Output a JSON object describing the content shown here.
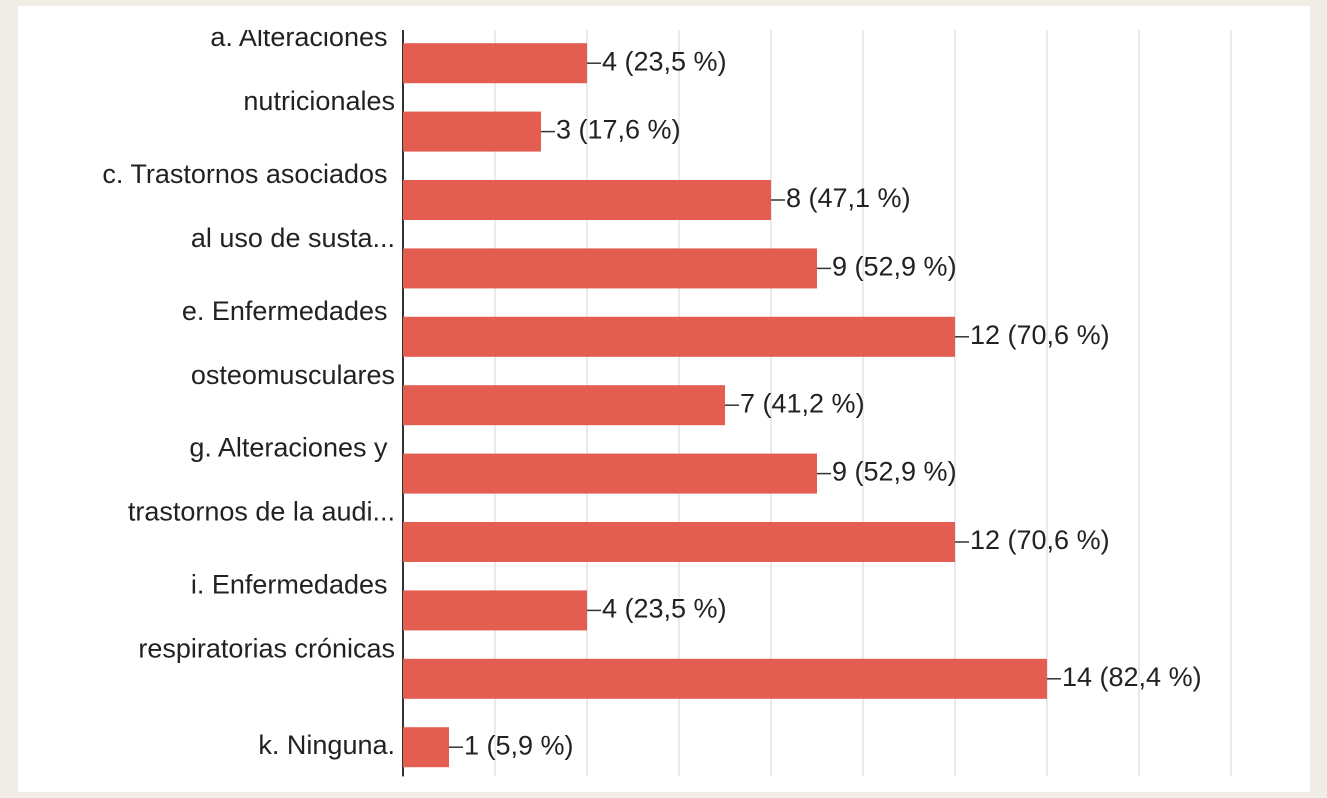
{
  "chart_data": {
    "type": "bar",
    "orientation": "horizontal",
    "categories": [
      "a. Alteraciones nutricionales",
      null,
      "c. Trastornos asociados al uso de susta...",
      null,
      "e. Enfermedades osteomusculares",
      null,
      "g. Alteraciones y trastornos de la audi...",
      null,
      "i. Enfermedades respiratorias crónicas",
      null,
      "k. Ninguna."
    ],
    "values": [
      4,
      3,
      8,
      9,
      12,
      7,
      9,
      12,
      4,
      14,
      1
    ],
    "value_labels": [
      "4 (23,5 %)",
      "3 (17,6 %)",
      "8 (47,1 %)",
      "9 (52,9 %)",
      "12 (70,6 %)",
      "7 (41,2 %)",
      "9 (52,9 %)",
      "12 (70,6 %)",
      "4 (23,5 %)",
      "14 (82,4 %)",
      "1 (5,9 %)"
    ],
    "color": "#e35d50",
    "xlim": [
      0,
      18
    ],
    "xticks": [
      0,
      2,
      4,
      6,
      8,
      10,
      12,
      14,
      16,
      18
    ],
    "grid": true
  }
}
